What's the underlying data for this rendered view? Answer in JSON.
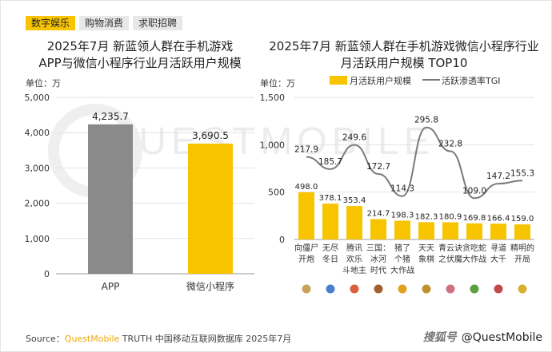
{
  "tabs": [
    {
      "label": "数字娱乐",
      "active": true
    },
    {
      "label": "购物消费",
      "active": false
    },
    {
      "label": "求职招聘",
      "active": false
    }
  ],
  "left_chart_title_line1": "2025年7月 新蓝领人群在手机游戏",
  "left_chart_title_line2": "APP与微信小程序行业月活跃用户规模",
  "right_chart_title_line1": "2025年7月 新蓝领人群在手机游戏微信小程序行业",
  "right_chart_title_line2": "月活跃用户规模 TOP10",
  "left_unit": "单位：万",
  "right_unit": "单位：万",
  "watermark": "QUESTMOBILE",
  "source_prefix": "Source：",
  "source_brand": "QuestMobile",
  "source_rest": " TRUTH 中国移动互联网数据库 2025年7月",
  "corner_logo": "搜狐号",
  "corner_handle": "@QuestMobile",
  "colors": {
    "accent": "#f8c400",
    "gray_bar": "#8a8a8a",
    "line": "#7a7a7a"
  },
  "chart_data": [
    {
      "type": "bar",
      "title": "2025年7月 新蓝领人群在手机游戏APP与微信小程序行业月活跃用户规模",
      "ylabel": "单位：万",
      "ylim": [
        0,
        5000
      ],
      "yticks": [
        "0",
        "1,000",
        "2,000",
        "3,000",
        "4,000",
        "5,000"
      ],
      "categories": [
        "APP",
        "微信小程序"
      ],
      "values": [
        4235.7,
        3690.5
      ],
      "value_labels": [
        "4,235.7",
        "3,690.5"
      ],
      "bar_colors": [
        "#8a8a8a",
        "#f8c400"
      ],
      "grid": true
    },
    {
      "type": "bar+line",
      "title": "2025年7月 新蓝领人群在手机游戏微信小程序行业月活跃用户规模 TOP10",
      "ylabel": "单位：万",
      "ylim": [
        0,
        1500
      ],
      "yticks": [
        "0",
        "500",
        "1,000",
        "1,500"
      ],
      "legend": [
        "月活跃用户规模",
        "活跃渗透率TGI"
      ],
      "legend_placement": "top",
      "categories": [
        [
          "向僵尸",
          "开炮"
        ],
        [
          "无尽",
          "冬日"
        ],
        [
          "腾讯",
          "欢乐",
          "斗地主"
        ],
        [
          "三国：",
          "冰河",
          "时代"
        ],
        [
          "猪了",
          "个猪",
          "大作战"
        ],
        [
          "天天",
          "象棋"
        ],
        [
          "青云诀",
          "之伏魔"
        ],
        [
          "贪吃蛇",
          "大作战"
        ],
        [
          "寻道",
          "大千"
        ],
        [
          "精明的",
          "开局"
        ]
      ],
      "series": [
        {
          "name": "月活跃用户规模",
          "values": [
            498.0,
            378.1,
            353.4,
            214.7,
            198.3,
            182.3,
            180.9,
            169.8,
            166.4,
            159.0
          ]
        },
        {
          "name": "活跃渗透率TGI",
          "values": [
            217.9,
            185.7,
            249.6,
            172.7,
            114.3,
            295.8,
            232.8,
            109.0,
            147.2,
            155.3
          ]
        }
      ],
      "bar_labels": [
        "498.0",
        "378.1",
        "353.4",
        "214.7",
        "198.3",
        "182.3",
        "180.9",
        "169.8",
        "166.4",
        "159.0"
      ],
      "line_labels": [
        "217.9",
        "185.7",
        "249.6",
        "172.7",
        "114.3",
        "295.8",
        "232.8",
        "109.0",
        "147.2",
        "155.3"
      ],
      "icon_colors": [
        "#c8a15a",
        "#4a7fd0",
        "#d9603a",
        "#a06030",
        "#e0a020",
        "#c09030",
        "#d07080",
        "#5aa040",
        "#c04a4a",
        "#d8b030"
      ],
      "grid": true
    }
  ]
}
